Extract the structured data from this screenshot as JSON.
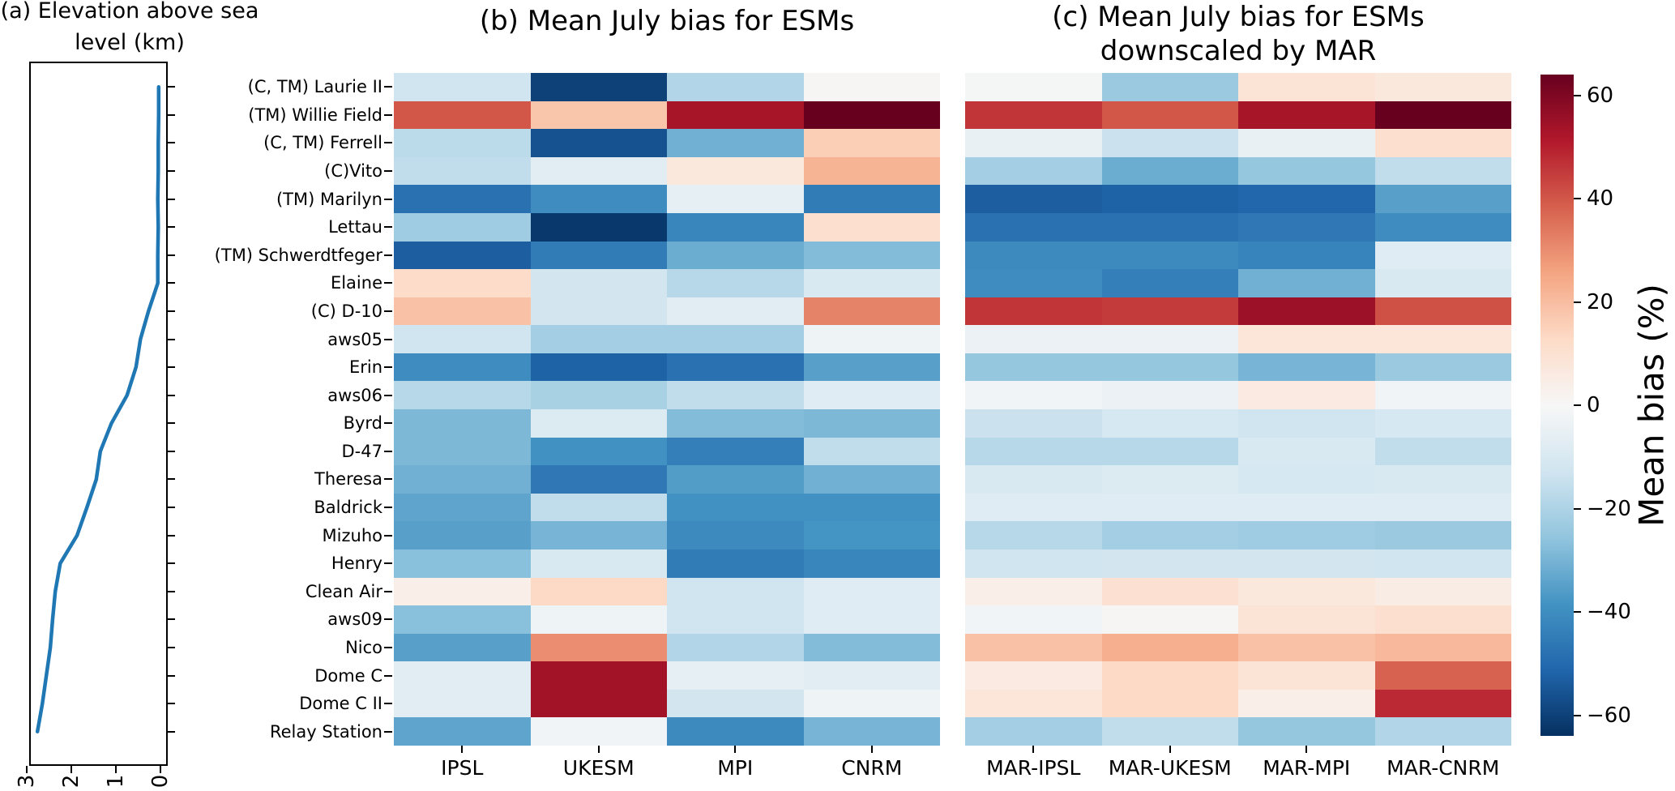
{
  "chart_data": [
    {
      "id": "panel_a",
      "type": "line",
      "title": "(a) Elevation above sea level (km)",
      "title_lines": [
        "(a) Elevation above sea",
        "level (km)"
      ],
      "orientation": "vertical-profile",
      "categories": [
        "(C, TM) Laurie II",
        "(TM) Willie Field",
        "(C, TM) Ferrell",
        "(C)Vito",
        "(TM) Marilyn",
        "Lettau",
        "(TM) Schwerdtfeger",
        "Elaine",
        "(C) D-10",
        "aws05",
        "Erin",
        "aws06",
        "Byrd",
        "D-47",
        "Theresa",
        "Baldrick",
        "Mizuho",
        "Henry",
        "Clean Air",
        "aws09",
        "Nico",
        "Dome C",
        "Dome C II",
        "Relay Station"
      ],
      "values": [
        0.04,
        0.04,
        0.05,
        0.05,
        0.06,
        0.05,
        0.06,
        0.06,
        0.27,
        0.45,
        0.55,
        0.75,
        1.1,
        1.35,
        1.44,
        1.65,
        1.87,
        2.25,
        2.36,
        2.42,
        2.47,
        2.56,
        2.65,
        2.76
      ],
      "x_ticks": [
        "3",
        "2",
        "1",
        "0"
      ],
      "x_tick_values": [
        3,
        2,
        1,
        0
      ],
      "x_range": [
        3,
        0
      ],
      "grid": false,
      "line_color": "#1f77b4"
    },
    {
      "id": "panel_b",
      "type": "heatmap",
      "title": "(b) Mean July bias for ESMs",
      "columns": [
        "IPSL",
        "UKESM",
        "MPI",
        "CNRM"
      ],
      "rows": [
        "(C, TM) Laurie II",
        "(TM) Willie Field",
        "(C, TM) Ferrell",
        "(C)Vito",
        "(TM) Marilyn",
        "Lettau",
        "(TM) Schwerdtfeger",
        "Elaine",
        "(C) D-10",
        "aws05",
        "Erin",
        "aws06",
        "Byrd",
        "D-47",
        "Theresa",
        "Baldrick",
        "Mizuho",
        "Henry",
        "Clean Air",
        "aws09",
        "Nico",
        "Dome C",
        "Dome C II",
        "Relay Station"
      ],
      "values": [
        [
          -13,
          -60,
          -19,
          1
        ],
        [
          40,
          18,
          53,
          64
        ],
        [
          -17,
          -56,
          -31,
          16
        ],
        [
          -16,
          -7,
          7,
          22
        ],
        [
          -48,
          -40,
          -6,
          -45
        ],
        [
          -23,
          -62,
          -42,
          11
        ],
        [
          -53,
          -45,
          -32,
          -28
        ],
        [
          12,
          -12,
          -18,
          -10
        ],
        [
          19,
          -12,
          -7,
          32
        ],
        [
          -13,
          -22,
          -22,
          -3
        ],
        [
          -40,
          -52,
          -48,
          -35
        ],
        [
          -18,
          -21,
          -16,
          -8
        ],
        [
          -29,
          -9,
          -28,
          -29
        ],
        [
          -29,
          -39,
          -44,
          -16
        ],
        [
          -31,
          -46,
          -36,
          -31
        ],
        [
          -34,
          -16,
          -39,
          -39
        ],
        [
          -35,
          -30,
          -41,
          -38
        ],
        [
          -27,
          -10,
          -45,
          -42
        ],
        [
          4,
          13,
          -13,
          -8
        ],
        [
          -27,
          -3,
          -13,
          -8
        ],
        [
          -35,
          30,
          -19,
          -28
        ],
        [
          -7,
          54,
          -6,
          -7
        ],
        [
          -7,
          54,
          -12,
          -3
        ],
        [
          -34,
          -2,
          -41,
          -30
        ]
      ],
      "vmin": -64,
      "vmax": 64,
      "colormap": "RdBu_r",
      "units": "%"
    },
    {
      "id": "panel_c",
      "type": "heatmap",
      "title": "(c) Mean July bias for ESMs downscaled by MAR",
      "title_lines": [
        "(c) Mean July bias for ESMs",
        "downscaled by MAR"
      ],
      "columns": [
        "MAR-IPSL",
        "MAR-UKESM",
        "MAR-MPI",
        "MAR-CNRM"
      ],
      "rows": [
        "(C, TM) Laurie II",
        "(TM) Willie Field",
        "(C, TM) Ferrell",
        "(C)Vito",
        "(TM) Marilyn",
        "Lettau",
        "(TM) Schwerdtfeger",
        "Elaine",
        "(C) D-10",
        "aws05",
        "Erin",
        "aws06",
        "Byrd",
        "D-47",
        "Theresa",
        "Baldrick",
        "Mizuho",
        "Henry",
        "Clean Air",
        "aws09",
        "Nico",
        "Dome C",
        "Dome C II",
        "Relay Station"
      ],
      "values": [
        [
          -1,
          -24,
          9,
          7
        ],
        [
          46,
          40,
          53,
          64
        ],
        [
          -5,
          -14,
          -5,
          11
        ],
        [
          -22,
          -32,
          -25,
          -16
        ],
        [
          -53,
          -52,
          -51,
          -35
        ],
        [
          -48,
          -48,
          -46,
          -40
        ],
        [
          -41,
          -41,
          -43,
          -8
        ],
        [
          -40,
          -44,
          -31,
          -10
        ],
        [
          46,
          45,
          55,
          41
        ],
        [
          -4,
          -4,
          8,
          8
        ],
        [
          -25,
          -25,
          -30,
          -24
        ],
        [
          -2,
          -4,
          6,
          -2
        ],
        [
          -14,
          -11,
          -13,
          -11
        ],
        [
          -18,
          -18,
          -10,
          -16
        ],
        [
          -10,
          -9,
          -11,
          -10
        ],
        [
          -8,
          -8,
          -8,
          -8
        ],
        [
          -18,
          -22,
          -23,
          -24
        ],
        [
          -13,
          -12,
          -12,
          -13
        ],
        [
          4,
          10,
          7,
          5
        ],
        [
          -2,
          1,
          9,
          11
        ],
        [
          19,
          23,
          19,
          21
        ],
        [
          6,
          13,
          9,
          38
        ],
        [
          8,
          13,
          4,
          48
        ],
        [
          -22,
          -16,
          -25,
          -19
        ]
      ],
      "vmin": -64,
      "vmax": 64,
      "colormap": "RdBu_r",
      "units": "%"
    }
  ],
  "colorbar": {
    "label": "Mean bias (%)",
    "tick_labels": [
      "60",
      "40",
      "20",
      "0",
      "−20",
      "−40",
      "−60"
    ],
    "tick_values": [
      60,
      40,
      20,
      0,
      -20,
      -40,
      -60
    ],
    "vmin": -64,
    "vmax": 64,
    "colormap_anchors": [
      "#053061",
      "#2166ac",
      "#4393c3",
      "#92c5de",
      "#d1e5f0",
      "#f7f7f7",
      "#fddbc7",
      "#f4a582",
      "#d6604d",
      "#b2182b",
      "#67001f"
    ]
  },
  "colors": {
    "line": "#1f77b4",
    "text": "#000000",
    "background": "#ffffff"
  }
}
